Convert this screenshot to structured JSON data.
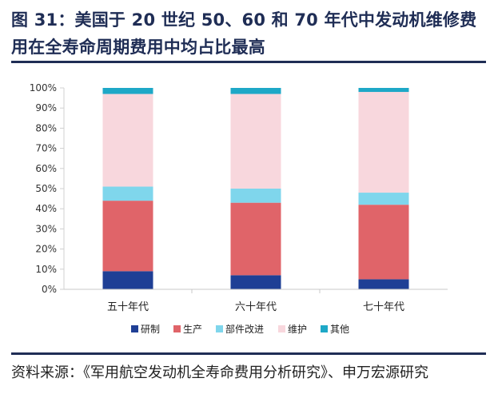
{
  "title": "图 31：美国于 20 世纪 50、60 和 70 年代中发动机维修费用在全寿命周期费用中均占比最高",
  "source": "资料来源：《军用航空发动机全寿命费用分析研究》、申万宏源研究",
  "chart_data": {
    "type": "bar",
    "stacked": true,
    "categories": [
      "五十年代",
      "六十年代",
      "七十年代"
    ],
    "series": [
      {
        "name": "研制",
        "color": "#1f3f95",
        "values": [
          9,
          7,
          5
        ]
      },
      {
        "name": "生产",
        "color": "#e06469",
        "values": [
          35,
          36,
          37
        ]
      },
      {
        "name": "部件改进",
        "color": "#7fd6ec",
        "values": [
          7,
          7,
          6
        ]
      },
      {
        "name": "维护",
        "color": "#f8d7dd",
        "values": [
          46,
          47,
          50
        ]
      },
      {
        "name": "其他",
        "color": "#1ea8c7",
        "values": [
          3,
          3,
          2
        ]
      }
    ],
    "yticks": [
      "0%",
      "10%",
      "20%",
      "30%",
      "40%",
      "50%",
      "60%",
      "70%",
      "80%",
      "90%",
      "100%"
    ],
    "ylim": [
      0,
      100
    ],
    "legend_position": "bottom",
    "grid": false
  }
}
